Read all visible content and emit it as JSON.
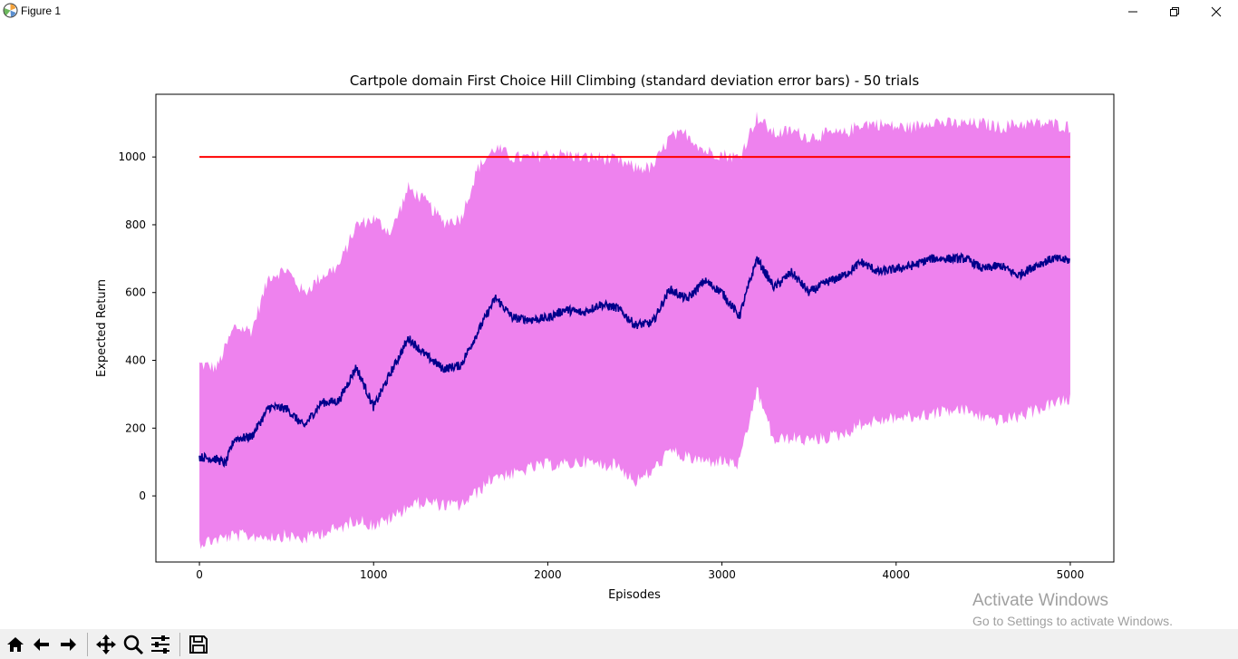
{
  "window": {
    "title": "Figure 1",
    "app_icon": "matplotlib-icon",
    "controls": [
      "minimize-icon",
      "restore-icon",
      "close-icon"
    ]
  },
  "chart_data": {
    "type": "line",
    "title": "Cartpole domain First Choice Hill Climbing (standard deviation error bars) - 50 trials",
    "xlabel": "Episodes",
    "ylabel": "Expected Return",
    "xlim": [
      -250,
      5250
    ],
    "ylim": [
      -195,
      1185
    ],
    "xticks": [
      0,
      1000,
      2000,
      3000,
      4000,
      5000
    ],
    "yticks": [
      0,
      200,
      400,
      600,
      800,
      1000
    ],
    "grid": false,
    "legend": "none",
    "series": [
      {
        "style": "fill_between",
        "color": "#ee82ee",
        "x": [
          0,
          100,
          200,
          300,
          400,
          500,
          600,
          700,
          800,
          900,
          1000,
          1100,
          1200,
          1300,
          1400,
          1500,
          1600,
          1700,
          1800,
          1900,
          2000,
          2100,
          2200,
          2300,
          2400,
          2500,
          2600,
          2700,
          2800,
          2900,
          3000,
          3100,
          3200,
          3300,
          3400,
          3500,
          3600,
          3700,
          3800,
          3900,
          4000,
          4100,
          4200,
          4300,
          4400,
          4500,
          4600,
          4700,
          4800,
          4900,
          5000
        ],
        "upper": [
          380,
          370,
          490,
          480,
          640,
          660,
          590,
          640,
          670,
          790,
          810,
          770,
          900,
          860,
          800,
          810,
          960,
          1020,
          990,
          990,
          1000,
          1000,
          990,
          990,
          980,
          960,
          960,
          1050,
          1060,
          1010,
          1000,
          990,
          1110,
          1060,
          1070,
          1050,
          1060,
          1060,
          1090,
          1090,
          1080,
          1080,
          1100,
          1090,
          1090,
          1090,
          1080,
          1090,
          1090,
          1090,
          1080
        ],
        "lower": [
          -130,
          -120,
          -110,
          -110,
          -110,
          -110,
          -120,
          -100,
          -90,
          -60,
          -80,
          -60,
          -20,
          -10,
          -20,
          -20,
          20,
          70,
          70,
          90,
          100,
          100,
          110,
          100,
          100,
          50,
          80,
          140,
          120,
          110,
          110,
          100,
          320,
          170,
          180,
          170,
          180,
          190,
          220,
          230,
          240,
          240,
          250,
          260,
          260,
          240,
          230,
          240,
          260,
          280,
          290
        ]
      },
      {
        "style": "line",
        "color": "#00008b",
        "x": [
          0,
          100,
          150,
          200,
          300,
          400,
          500,
          600,
          700,
          800,
          900,
          1000,
          1100,
          1200,
          1300,
          1400,
          1500,
          1600,
          1700,
          1800,
          1900,
          2000,
          2100,
          2200,
          2300,
          2400,
          2500,
          2600,
          2700,
          2800,
          2900,
          3000,
          3100,
          3200,
          3300,
          3400,
          3500,
          3600,
          3700,
          3800,
          3900,
          4000,
          4100,
          4200,
          4300,
          4400,
          4500,
          4600,
          4700,
          4800,
          4900,
          5000
        ],
        "mean": [
          115,
          108,
          95,
          168,
          175,
          262,
          258,
          205,
          275,
          280,
          380,
          262,
          365,
          465,
          415,
          375,
          385,
          485,
          585,
          525,
          520,
          525,
          550,
          540,
          565,
          555,
          505,
          510,
          610,
          580,
          635,
          600,
          530,
          700,
          615,
          660,
          600,
          630,
          650,
          690,
          660,
          670,
          680,
          700,
          700,
          700,
          670,
          680,
          650,
          680,
          700,
          695
        ]
      },
      {
        "style": "line",
        "color": "#ff0000",
        "x": [
          0,
          5000
        ],
        "y": [
          1000,
          1000
        ]
      }
    ]
  },
  "toolbar": {
    "buttons": [
      {
        "icon": "home-icon",
        "label": "Home"
      },
      {
        "icon": "back-arrow-icon",
        "label": "Back"
      },
      {
        "icon": "forward-arrow-icon",
        "label": "Forward"
      },
      {
        "icon": "pan-icon",
        "label": "Pan"
      },
      {
        "icon": "zoom-icon",
        "label": "Zoom"
      },
      {
        "icon": "configure-subplots-icon",
        "label": "Subplots"
      },
      {
        "icon": "save-icon",
        "label": "Save"
      }
    ]
  },
  "watermark": {
    "line1": "Activate Windows",
    "line2": "Go to Settings to activate Windows."
  }
}
